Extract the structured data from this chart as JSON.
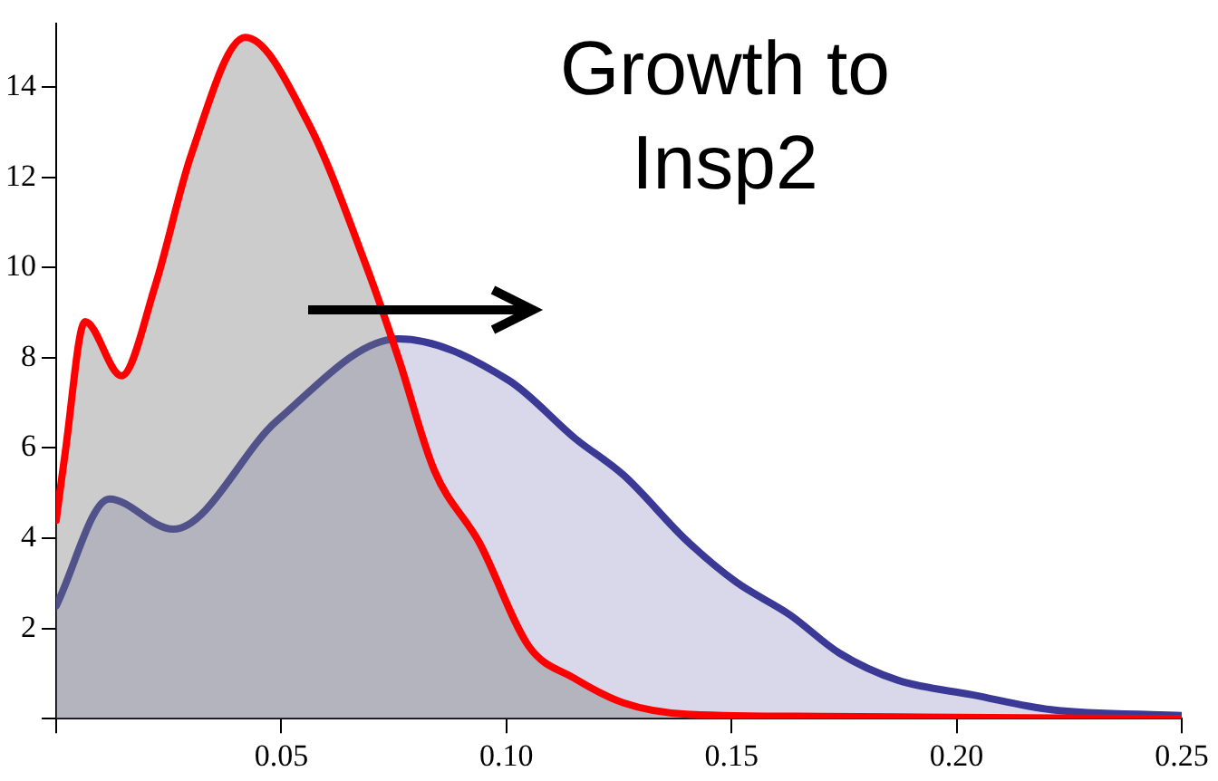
{
  "chart_data": {
    "type": "area",
    "annotations": [
      "Growth to\nInsp2"
    ],
    "xlim": [
      0,
      0.25
    ],
    "ylim": [
      0,
      15.4
    ],
    "xticks": [
      {
        "value": 0,
        "label": null
      },
      {
        "value": 0.05,
        "label": "0.05"
      },
      {
        "value": 0.1,
        "label": "0.10"
      },
      {
        "value": 0.15,
        "label": "0.15"
      },
      {
        "value": 0.2,
        "label": "0.20"
      },
      {
        "value": 0.25,
        "label": "0.25"
      }
    ],
    "yticks": [
      {
        "value": 0,
        "label": null
      },
      2,
      4,
      6,
      8,
      10,
      12,
      14
    ],
    "grid": false,
    "legend": false,
    "series": [
      {
        "color": "#ff0000",
        "x": [
          0,
          0.002,
          0.0064,
          0.0145,
          0.022,
          0.03,
          0.042,
          0.056,
          0.069,
          0.076,
          0.084,
          0.094,
          0.105,
          0.115,
          0.126,
          0.14,
          0.17,
          0.2,
          0.25
        ],
        "values": [
          4.4,
          5.9,
          8.8,
          7.6,
          9.6,
          12.5,
          15.1,
          13.2,
          10,
          8,
          5.5,
          3.9,
          1.6,
          0.9,
          0.35,
          0.1,
          0.05,
          0.03,
          0
        ]
      },
      {
        "color": "#3a3a96",
        "x": [
          0,
          0.0118,
          0.026,
          0.049,
          0.076,
          0.1005,
          0.1154,
          0.126,
          0.14,
          0.151,
          0.163,
          0.174,
          0.187,
          0.2035,
          0.221,
          0.25
        ],
        "values": [
          2.5,
          4.87,
          4.2,
          6.6,
          8.42,
          7.5,
          6.2,
          5.4,
          3.95,
          3.03,
          2.3,
          1.45,
          0.85,
          0.53,
          0.2,
          0.07
        ]
      }
    ]
  }
}
